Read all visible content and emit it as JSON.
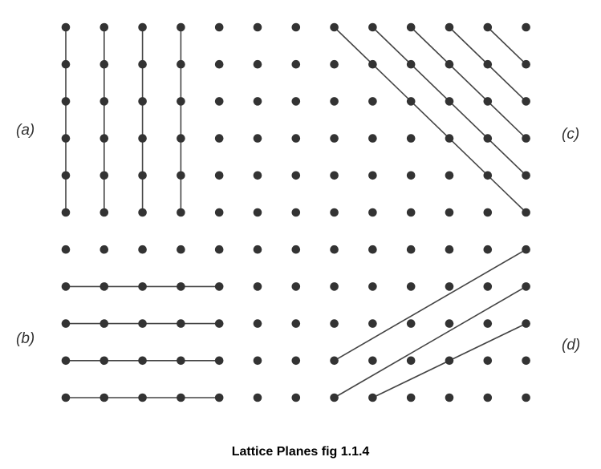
{
  "labels": {
    "a": "(a)",
    "b": "(b)",
    "c": "(c)",
    "d": "(d)"
  },
  "caption": "Lattice Planes fig 1.1.4",
  "colors": {
    "dot": "#333333",
    "line": "#444444",
    "background": "#ffffff"
  },
  "lattice": {
    "columns": 13,
    "rows": 11
  },
  "panels": {
    "a": {
      "orientation": "vertical",
      "plane_count": 4
    },
    "b": {
      "orientation": "horizontal",
      "plane_count": 4
    },
    "c": {
      "orientation": "diagonal-down",
      "plane_count": 5
    },
    "d": {
      "orientation": "diagonal-up",
      "plane_count": 3
    }
  }
}
